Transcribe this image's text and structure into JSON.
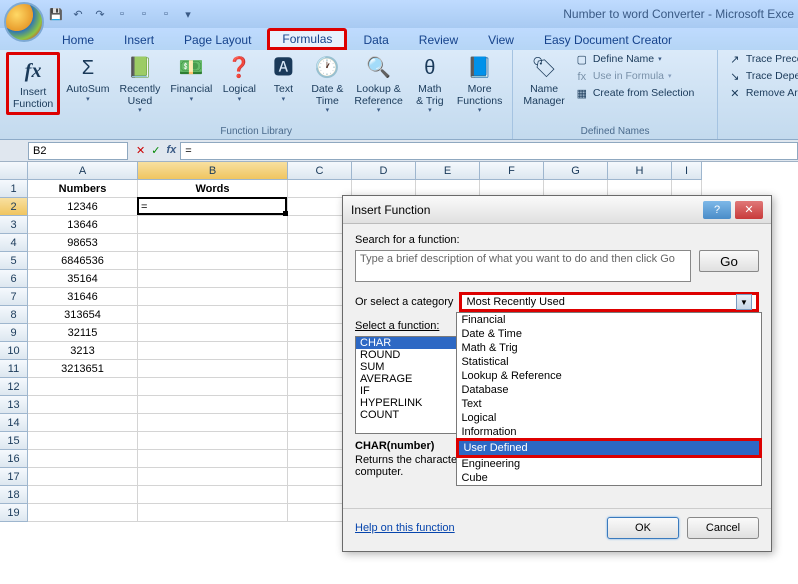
{
  "title": "Number to word Converter - Microsoft Exce",
  "tabs": [
    "Home",
    "Insert",
    "Page Layout",
    "Formulas",
    "Data",
    "Review",
    "View",
    "Easy Document Creator"
  ],
  "active_tab_index": 3,
  "ribbon": {
    "func_library_label": "Function Library",
    "defined_names_label": "Defined Names",
    "insert_function": "Insert\nFunction",
    "autosum": "AutoSum",
    "recently": "Recently\nUsed",
    "financial": "Financial",
    "logical": "Logical",
    "text": "Text",
    "datetime": "Date &\nTime",
    "lookup": "Lookup &\nReference",
    "mathtrig": "Math\n& Trig",
    "morefunc": "More\nFunctions",
    "namemgr": "Name\nManager",
    "define_name": "Define Name",
    "use_in_formula": "Use in Formula",
    "create_sel": "Create from Selection",
    "trace_prec": "Trace Prece",
    "trace_dep": "Trace Depe",
    "remove_ar": "Remove Ar"
  },
  "namebox": "B2",
  "formula": "=",
  "columns": {
    "A": 110,
    "B": 150,
    "C": 64,
    "D": 64,
    "E": 64,
    "F": 64,
    "G": 64,
    "H": 64,
    "I": 30
  },
  "active_col": "B",
  "active_row": 2,
  "headers": {
    "A": "Numbers",
    "B": "Words"
  },
  "data_a": [
    "12346",
    "13646",
    "98653",
    "6846536",
    "35164",
    "31646",
    "313654",
    "32115",
    "3213",
    "3213651"
  ],
  "b2": "=",
  "row_count": 19,
  "dialog": {
    "title": "Insert Function",
    "search_label": "Search for a function:",
    "search_placeholder": "Type a brief description of what you want to do and then click Go",
    "go": "Go",
    "cat_label": "Or select a category",
    "cat_value": "Most Recently Used",
    "dropdown": [
      "Financial",
      "Date & Time",
      "Math & Trig",
      "Statistical",
      "Lookup & Reference",
      "Database",
      "Text",
      "Logical",
      "Information",
      "User Defined",
      "Engineering",
      "Cube"
    ],
    "dropdown_sel": "User Defined",
    "select_func_label": "Select a function:",
    "funcs": [
      "CHAR",
      "ROUND",
      "SUM",
      "AVERAGE",
      "IF",
      "HYPERLINK",
      "COUNT"
    ],
    "func_sel": "CHAR",
    "sig": "CHAR(number)",
    "desc1": "Returns the characte",
    "desc2": "racter set for your computer.",
    "help": "Help on this function",
    "ok": "OK",
    "cancel": "Cancel"
  }
}
